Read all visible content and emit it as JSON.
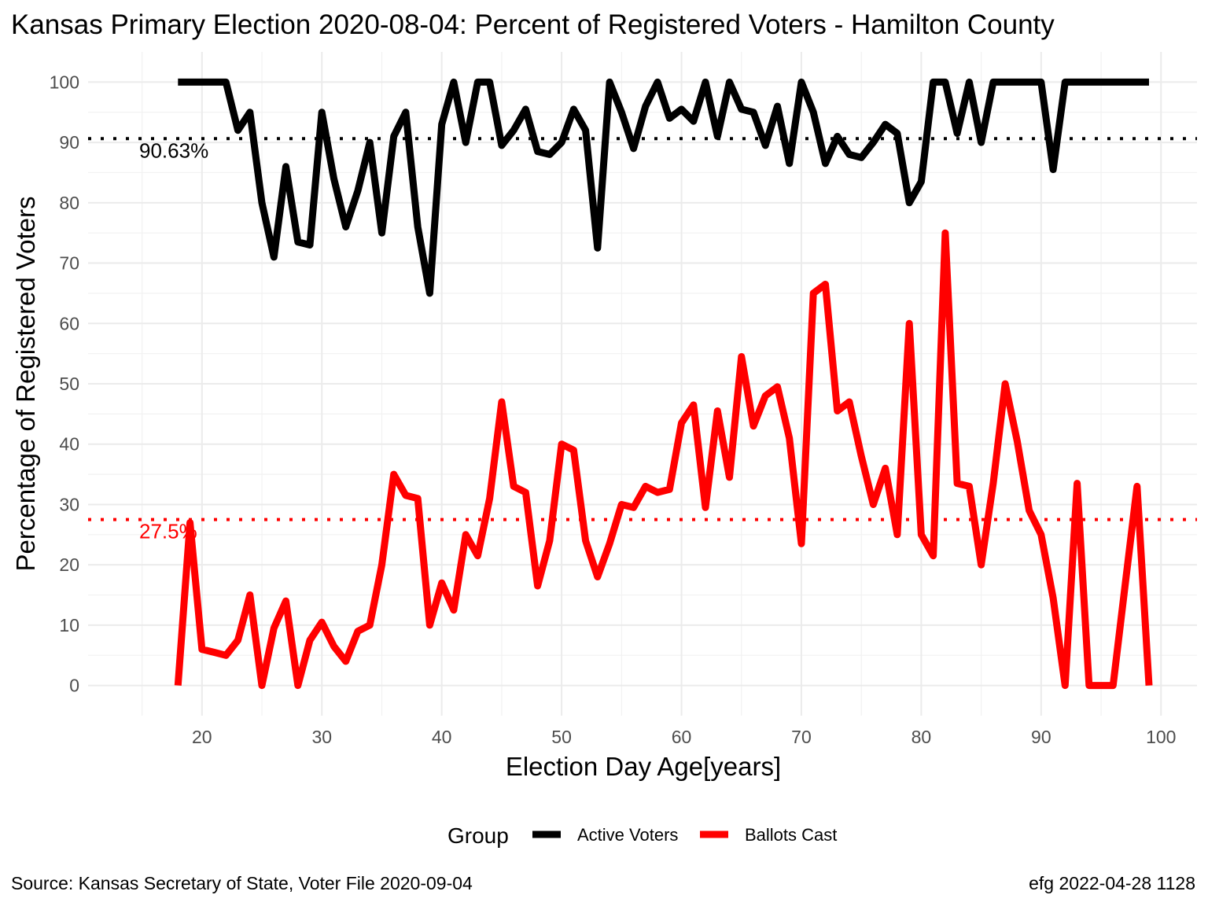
{
  "chart_data": {
    "type": "line",
    "title": "Kansas Primary Election 2020-08-04:  Percent of Registered Voters - Hamilton County",
    "xlabel": "Election Day Age[years]",
    "ylabel": "Percentage of Registered Voters",
    "xlim": [
      10.5,
      103
    ],
    "ylim": [
      -5,
      105
    ],
    "x_ticks": [
      20,
      30,
      40,
      50,
      60,
      70,
      80,
      90,
      100
    ],
    "y_ticks": [
      0,
      10,
      20,
      30,
      40,
      50,
      60,
      70,
      80,
      90,
      100
    ],
    "grid": true,
    "legend": {
      "title": "Group",
      "position": "bottom",
      "entries": [
        {
          "label": "Active Voters",
          "color": "#000000"
        },
        {
          "label": "Ballots Cast",
          "color": "#ff0000"
        }
      ]
    },
    "reference_lines": [
      {
        "series": "Active Voters",
        "y": 90.63,
        "label": "90.63%",
        "color": "#000000"
      },
      {
        "series": "Ballots Cast",
        "y": 27.5,
        "label": "27.5%",
        "color": "#ff0000"
      }
    ],
    "series": [
      {
        "name": "Active Voters",
        "color": "#000000",
        "points": [
          [
            18,
            100
          ],
          [
            19,
            100
          ],
          [
            20,
            100
          ],
          [
            21,
            100
          ],
          [
            22,
            100
          ],
          [
            23,
            92
          ],
          [
            24,
            95
          ],
          [
            25,
            80
          ],
          [
            26,
            71
          ],
          [
            27,
            86
          ],
          [
            28,
            73.5
          ],
          [
            29,
            73
          ],
          [
            30,
            95
          ],
          [
            31,
            84
          ],
          [
            32,
            76
          ],
          [
            33,
            82
          ],
          [
            34,
            90
          ],
          [
            35,
            75
          ],
          [
            36,
            91
          ],
          [
            37,
            95
          ],
          [
            38,
            76
          ],
          [
            39,
            65
          ],
          [
            40,
            93
          ],
          [
            41,
            100
          ],
          [
            42,
            90
          ],
          [
            43,
            100
          ],
          [
            44,
            100
          ],
          [
            45,
            89.5
          ],
          [
            46,
            92
          ],
          [
            47,
            95.5
          ],
          [
            48,
            88.5
          ],
          [
            49,
            88
          ],
          [
            50,
            90
          ],
          [
            51,
            95.5
          ],
          [
            52,
            92
          ],
          [
            53,
            72.5
          ],
          [
            54,
            100
          ],
          [
            55,
            95
          ],
          [
            56,
            89
          ],
          [
            57,
            96
          ],
          [
            58,
            100
          ],
          [
            59,
            94
          ],
          [
            60,
            95.5
          ],
          [
            61,
            93.5
          ],
          [
            62,
            100
          ],
          [
            63,
            91
          ],
          [
            64,
            100
          ],
          [
            65,
            95.5
          ],
          [
            66,
            95
          ],
          [
            67,
            89.5
          ],
          [
            68,
            96
          ],
          [
            69,
            86.5
          ],
          [
            70,
            100
          ],
          [
            71,
            95
          ],
          [
            72,
            86.5
          ],
          [
            73,
            91
          ],
          [
            74,
            88
          ],
          [
            75,
            87.5
          ],
          [
            76,
            90
          ],
          [
            77,
            93
          ],
          [
            78,
            91.5
          ],
          [
            79,
            80
          ],
          [
            80,
            83.5
          ],
          [
            81,
            100
          ],
          [
            82,
            100
          ],
          [
            83,
            91.5
          ],
          [
            84,
            100
          ],
          [
            85,
            90
          ],
          [
            86,
            100
          ],
          [
            87,
            100
          ],
          [
            88,
            100
          ],
          [
            89,
            100
          ],
          [
            90,
            100
          ],
          [
            91,
            85.5
          ],
          [
            92,
            100
          ],
          [
            93,
            100
          ],
          [
            94,
            100
          ],
          [
            95,
            100
          ],
          [
            96,
            100
          ],
          [
            97,
            100
          ],
          [
            98,
            100
          ],
          [
            99,
            100
          ]
        ]
      },
      {
        "name": "Ballots Cast",
        "color": "#ff0000",
        "points": [
          [
            18,
            0
          ],
          [
            19,
            27
          ],
          [
            20,
            6
          ],
          [
            21,
            5.5
          ],
          [
            22,
            5
          ],
          [
            23,
            7.5
          ],
          [
            24,
            15
          ],
          [
            25,
            0
          ],
          [
            26,
            9.5
          ],
          [
            27,
            14
          ],
          [
            28,
            0
          ],
          [
            29,
            7.5
          ],
          [
            30,
            10.5
          ],
          [
            31,
            6.5
          ],
          [
            32,
            4
          ],
          [
            33,
            9
          ],
          [
            34,
            10
          ],
          [
            35,
            20
          ],
          [
            36,
            35
          ],
          [
            37,
            31.5
          ],
          [
            38,
            31
          ],
          [
            39,
            10
          ],
          [
            40,
            17
          ],
          [
            41,
            12.5
          ],
          [
            42,
            25
          ],
          [
            43,
            21.5
          ],
          [
            44,
            31
          ],
          [
            45,
            47
          ],
          [
            46,
            33
          ],
          [
            47,
            32
          ],
          [
            48,
            16.5
          ],
          [
            49,
            24
          ],
          [
            50,
            40
          ],
          [
            51,
            39
          ],
          [
            52,
            24
          ],
          [
            53,
            18
          ],
          [
            54,
            23.5
          ],
          [
            55,
            30
          ],
          [
            56,
            29.5
          ],
          [
            57,
            33
          ],
          [
            58,
            32
          ],
          [
            59,
            32.5
          ],
          [
            60,
            43.5
          ],
          [
            61,
            46.5
          ],
          [
            62,
            29.5
          ],
          [
            63,
            45.5
          ],
          [
            64,
            34.5
          ],
          [
            65,
            54.5
          ],
          [
            66,
            43
          ],
          [
            67,
            48
          ],
          [
            68,
            49.5
          ],
          [
            69,
            41
          ],
          [
            70,
            23.5
          ],
          [
            71,
            65
          ],
          [
            72,
            66.5
          ],
          [
            73,
            45.5
          ],
          [
            74,
            47
          ],
          [
            75,
            38
          ],
          [
            76,
            30
          ],
          [
            77,
            36
          ],
          [
            78,
            25
          ],
          [
            79,
            60
          ],
          [
            80,
            25
          ],
          [
            81,
            21.5
          ],
          [
            82,
            75
          ],
          [
            83,
            33.5
          ],
          [
            84,
            33
          ],
          [
            85,
            20
          ],
          [
            86,
            33.5
          ],
          [
            87,
            50
          ],
          [
            88,
            40.5
          ],
          [
            89,
            29
          ],
          [
            90,
            25
          ],
          [
            91,
            14.5
          ],
          [
            92,
            0
          ],
          [
            93,
            33.5
          ],
          [
            94,
            0
          ],
          [
            95,
            0
          ],
          [
            96,
            0
          ],
          [
            97,
            16.5
          ],
          [
            98,
            33
          ],
          [
            99,
            0
          ]
        ]
      }
    ]
  },
  "caption": {
    "source": "Source:  Kansas Secretary of State, Voter File  2020-09-04",
    "credit": "efg 2022-04-28 1128"
  }
}
